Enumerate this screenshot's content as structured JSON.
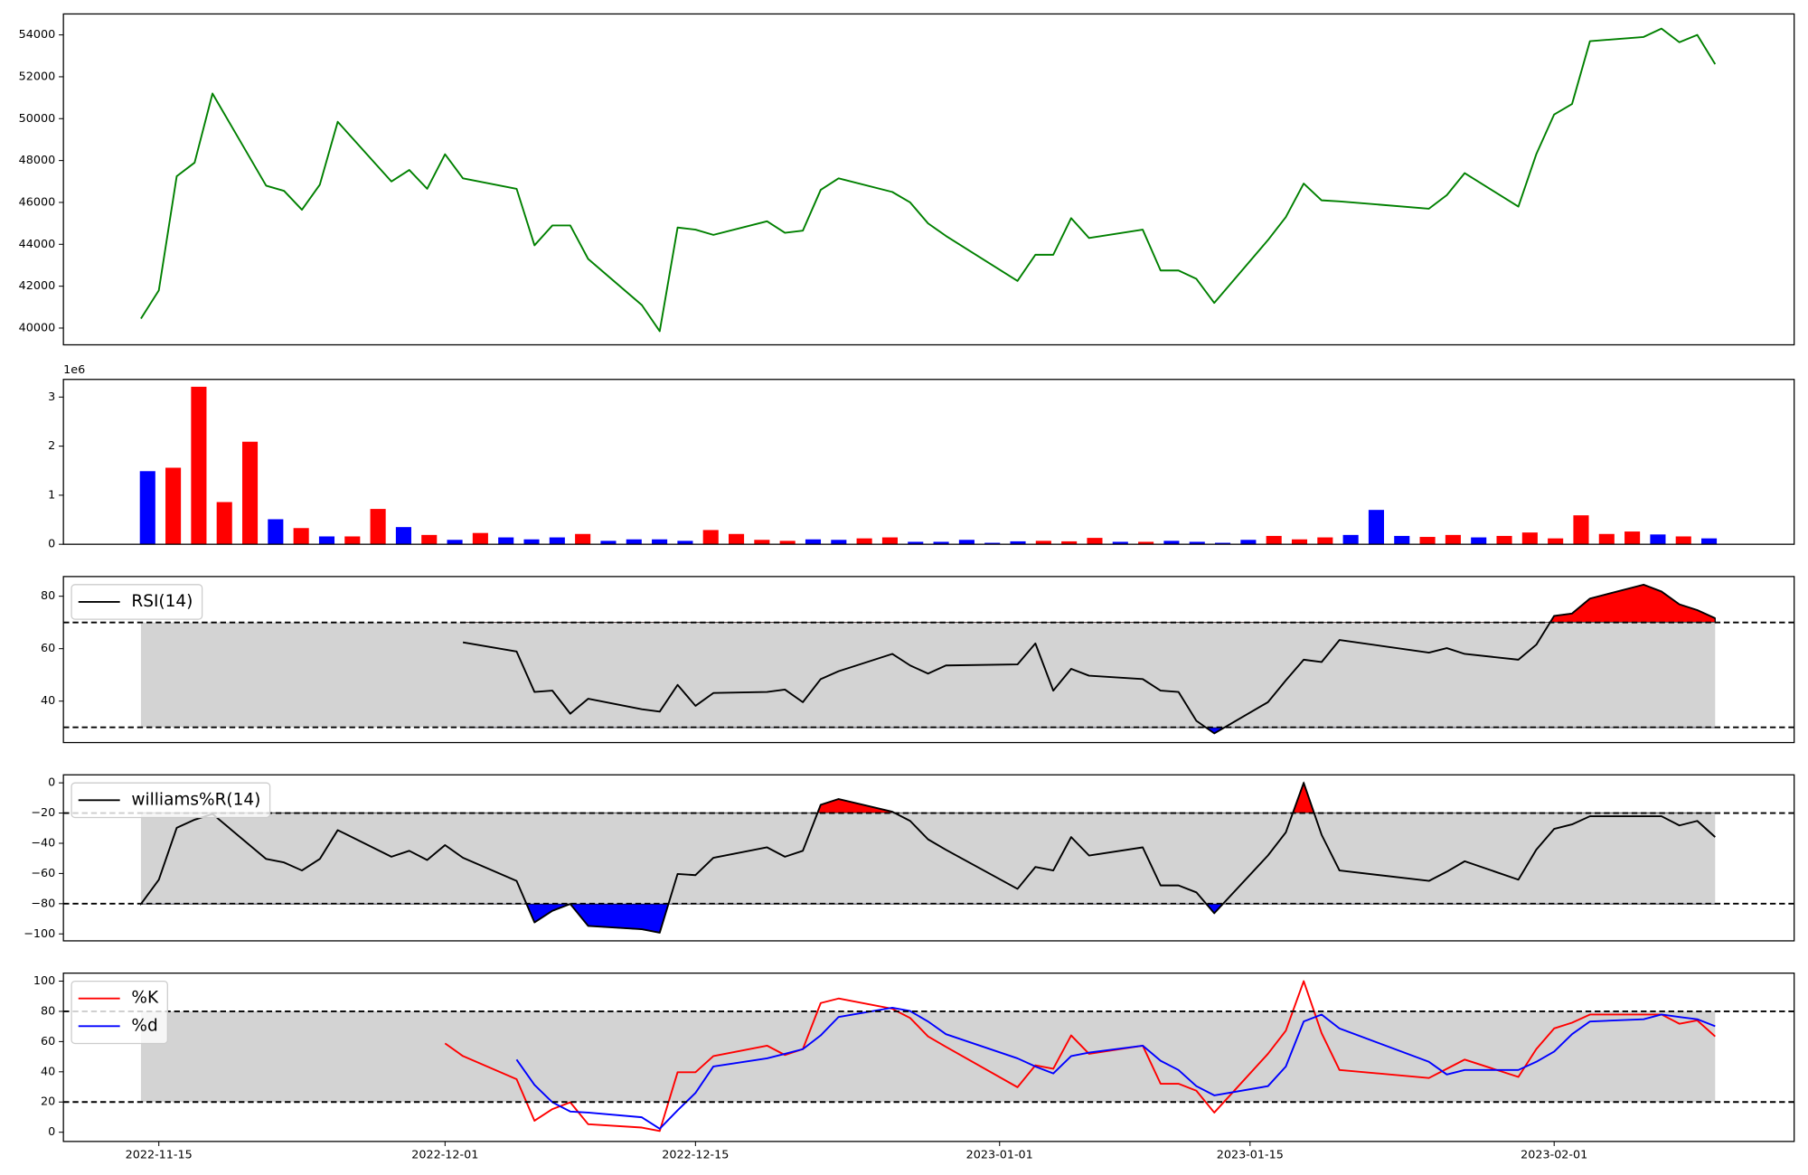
{
  "chart_data": [
    {
      "type": "line",
      "x": [
        "2022-11-14",
        "2022-11-15",
        "2022-11-16",
        "2022-11-17",
        "2022-11-18",
        "2022-11-21",
        "2022-11-22",
        "2022-11-23",
        "2022-11-24",
        "2022-11-25",
        "2022-11-28",
        "2022-11-29",
        "2022-11-30",
        "2022-12-01",
        "2022-12-02",
        "2022-12-05",
        "2022-12-06",
        "2022-12-07",
        "2022-12-08",
        "2022-12-09",
        "2022-12-12",
        "2022-12-13",
        "2022-12-14",
        "2022-12-15",
        "2022-12-16",
        "2022-12-19",
        "2022-12-20",
        "2022-12-21",
        "2022-12-22",
        "2022-12-23",
        "2022-12-26",
        "2022-12-27",
        "2022-12-28",
        "2022-12-29",
        "2023-01-02",
        "2023-01-03",
        "2023-01-04",
        "2023-01-05",
        "2023-01-06",
        "2023-01-09",
        "2023-01-10",
        "2023-01-11",
        "2023-01-12",
        "2023-01-13",
        "2023-01-16",
        "2023-01-17",
        "2023-01-18",
        "2023-01-19",
        "2023-01-20",
        "2023-01-25",
        "2023-01-26",
        "2023-01-27",
        "2023-01-30",
        "2023-01-31",
        "2023-02-01",
        "2023-02-02",
        "2023-02-03",
        "2023-02-06",
        "2023-02-07",
        "2023-02-08",
        "2023-02-09",
        "2023-02-10"
      ],
      "xlim": [
        "2022-11-09T16:00",
        "2023-02-14T10:00"
      ],
      "series": [
        {
          "color": "green",
          "values": [
            40450,
            41800,
            47250,
            47900,
            51200,
            46800,
            46550,
            45650,
            46850,
            49850,
            47000,
            47550,
            46650,
            48300,
            47150,
            46650,
            43950,
            44900,
            44900,
            43300,
            41100,
            39850,
            44800,
            44700,
            44450,
            45100,
            44550,
            44650,
            46600,
            47150,
            46500,
            46000,
            45000,
            44400,
            42250,
            43500,
            43500,
            45250,
            44300,
            44700,
            42750,
            42750,
            42350,
            41200,
            44200,
            45300,
            46900,
            46100,
            46050,
            45700,
            46350,
            47400,
            45800,
            48300,
            50200,
            50700,
            53700,
            53900,
            54300,
            53650,
            54000,
            52600
          ]
        }
      ],
      "ylim": [
        39200,
        55000
      ],
      "yticks": [
        40000,
        42000,
        44000,
        46000,
        48000,
        50000,
        52000,
        54000
      ]
    },
    {
      "type": "bar",
      "offset_label": "1e6",
      "values": [
        1490000,
        1560000,
        3210000,
        860000,
        2090000,
        510000,
        330000,
        160000,
        160000,
        720000,
        350000,
        190000,
        90000,
        230000,
        140000,
        100000,
        140000,
        210000,
        70000,
        100000,
        100000,
        70000,
        290000,
        210000,
        90000,
        70000,
        100000,
        90000,
        120000,
        140000,
        50000,
        50000,
        90000,
        30000,
        60000,
        70000,
        60000,
        130000,
        50000,
        50000,
        70000,
        50000,
        30000,
        90000,
        170000,
        100000,
        140000,
        190000,
        700000,
        170000,
        150000,
        190000,
        140000,
        170000,
        240000,
        120000,
        590000,
        210000,
        260000,
        200000,
        160000,
        120000
      ],
      "colors": [
        "blue",
        "red",
        "red",
        "red",
        "red",
        "blue",
        "red",
        "blue",
        "red",
        "red",
        "blue",
        "red",
        "blue",
        "red",
        "blue",
        "blue",
        "blue",
        "red",
        "blue",
        "blue",
        "blue",
        "blue",
        "red",
        "red",
        "red",
        "red",
        "blue",
        "blue",
        "red",
        "red",
        "blue",
        "blue",
        "blue",
        "blue",
        "blue",
        "red",
        "red",
        "red",
        "blue",
        "red",
        "blue",
        "blue",
        "blue",
        "blue",
        "red",
        "red",
        "red",
        "blue",
        "blue",
        "blue",
        "red",
        "red",
        "blue",
        "red",
        "red",
        "red",
        "red",
        "red",
        "red",
        "blue",
        "red",
        "blue"
      ],
      "ylim": [
        0,
        3360000
      ],
      "yticks": [
        0,
        {
          "value": 1000000,
          "label": "1"
        },
        {
          "value": 2000000,
          "label": "2"
        },
        {
          "value": 3000000,
          "label": "3"
        }
      ]
    },
    {
      "type": "line",
      "x": [
        "2022-11-14",
        "2022-11-15",
        "2022-11-16",
        "2022-11-17",
        "2022-11-18",
        "2022-11-21",
        "2022-11-22",
        "2022-11-23",
        "2022-11-24",
        "2022-11-25",
        "2022-11-28",
        "2022-11-29",
        "2022-11-30",
        "2022-12-01",
        "2022-12-02",
        "2022-12-05",
        "2022-12-06",
        "2022-12-07",
        "2022-12-08",
        "2022-12-09",
        "2022-12-12",
        "2022-12-13",
        "2022-12-14",
        "2022-12-15",
        "2022-12-16",
        "2022-12-19",
        "2022-12-20",
        "2022-12-21",
        "2022-12-22",
        "2022-12-23",
        "2022-12-26",
        "2022-12-27",
        "2022-12-28",
        "2022-12-29",
        "2023-01-02",
        "2023-01-03",
        "2023-01-04",
        "2023-01-05",
        "2023-01-06",
        "2023-01-09",
        "2023-01-10",
        "2023-01-11",
        "2023-01-12",
        "2023-01-13",
        "2023-01-16",
        "2023-01-17",
        "2023-01-18",
        "2023-01-19",
        "2023-01-20",
        "2023-01-25",
        "2023-01-26",
        "2023-01-27",
        "2023-01-30",
        "2023-01-31",
        "2023-02-01",
        "2023-02-02",
        "2023-02-03",
        "2023-02-06",
        "2023-02-07",
        "2023-02-08",
        "2023-02-09",
        "2023-02-10"
      ],
      "xlim": [
        "2022-11-09T16:00",
        "2023-02-14T10:00"
      ],
      "series": [
        {
          "name": "RSI(14)",
          "color": "black",
          "values": [
            null,
            null,
            null,
            null,
            null,
            null,
            null,
            null,
            null,
            null,
            null,
            null,
            null,
            null,
            62.4,
            58.9,
            43.5,
            44.0,
            35.2,
            40.9,
            36.9,
            36.0,
            46.2,
            38.2,
            43.1,
            43.5,
            44.4,
            39.6,
            48.4,
            51.4,
            58.0,
            53.6,
            50.5,
            53.6,
            54.0,
            62.0,
            44.0,
            52.3,
            49.7,
            48.4,
            44.0,
            43.5,
            32.5,
            27.7,
            39.6,
            47.9,
            55.8,
            54.9,
            63.3,
            58.5,
            60.2,
            58.0,
            55.8,
            61.5,
            72.5,
            73.4,
            79.1,
            84.4,
            81.8,
            76.9,
            74.7,
            71.6
          ]
        }
      ],
      "thresholds": [
        70,
        30
      ],
      "band_color": "lightgray",
      "fill_colors": [
        "red",
        "blue"
      ],
      "legend": "upper left",
      "ylim": [
        24.2,
        87.5
      ],
      "yticks": [
        40,
        60,
        80
      ]
    },
    {
      "type": "line",
      "x": [
        "2022-11-14",
        "2022-11-15",
        "2022-11-16",
        "2022-11-17",
        "2022-11-18",
        "2022-11-21",
        "2022-11-22",
        "2022-11-23",
        "2022-11-24",
        "2022-11-25",
        "2022-11-28",
        "2022-11-29",
        "2022-11-30",
        "2022-12-01",
        "2022-12-02",
        "2022-12-05",
        "2022-12-06",
        "2022-12-07",
        "2022-12-08",
        "2022-12-09",
        "2022-12-12",
        "2022-12-13",
        "2022-12-14",
        "2022-12-15",
        "2022-12-16",
        "2022-12-19",
        "2022-12-20",
        "2022-12-21",
        "2022-12-22",
        "2022-12-23",
        "2022-12-26",
        "2022-12-27",
        "2022-12-28",
        "2022-12-29",
        "2023-01-02",
        "2023-01-03",
        "2023-01-04",
        "2023-01-05",
        "2023-01-06",
        "2023-01-09",
        "2023-01-10",
        "2023-01-11",
        "2023-01-12",
        "2023-01-13",
        "2023-01-16",
        "2023-01-17",
        "2023-01-18",
        "2023-01-19",
        "2023-01-20",
        "2023-01-25",
        "2023-01-26",
        "2023-01-27",
        "2023-01-30",
        "2023-01-31",
        "2023-02-01",
        "2023-02-02",
        "2023-02-03",
        "2023-02-06",
        "2023-02-07",
        "2023-02-08",
        "2023-02-09",
        "2023-02-10"
      ],
      "xlim": [
        "2022-11-09T16:00",
        "2023-02-14T10:00"
      ],
      "series": [
        {
          "name": "williams%R(14)",
          "color": "black",
          "values": [
            -80.2,
            -64.1,
            -29.8,
            -24.4,
            -20.6,
            -50.4,
            -52.7,
            -58.0,
            -50.4,
            -31.3,
            -48.9,
            -45.0,
            -51.1,
            -41.2,
            -49.6,
            -64.9,
            -92.4,
            -84.7,
            -80.2,
            -94.7,
            -96.9,
            -99.2,
            -60.3,
            -61.1,
            -49.6,
            -42.7,
            -48.9,
            -45.0,
            -14.5,
            -10.7,
            -19.1,
            -25.2,
            -37.4,
            -44.3,
            -70.2,
            -55.7,
            -58.0,
            -35.9,
            -48.1,
            -42.7,
            -67.9,
            -67.9,
            -72.5,
            -86.3,
            -48.1,
            -32.8,
            0,
            -34.4,
            -58.0,
            -64.9,
            -58.8,
            -51.9,
            -64.1,
            -44.3,
            -30.5,
            -27.5,
            -22.1,
            -22.1,
            -22.1,
            -28.2,
            -25.2,
            -35.9
          ]
        }
      ],
      "thresholds": [
        -20,
        -80
      ],
      "band_color": "lightgray",
      "fill_colors": [
        "red",
        "blue"
      ],
      "legend": "upper left",
      "ylim": [
        -104.6,
        5.3
      ],
      "yticks": [
        {
          "value": -100,
          "label": "−100"
        },
        {
          "value": -80,
          "label": "−80"
        },
        {
          "value": -60,
          "label": "−60"
        },
        {
          "value": -40,
          "label": "−40"
        },
        {
          "value": -20,
          "label": "−20"
        },
        0
      ]
    },
    {
      "type": "line",
      "x": [
        "2022-11-14",
        "2022-11-15",
        "2022-11-16",
        "2022-11-17",
        "2022-11-18",
        "2022-11-21",
        "2022-11-22",
        "2022-11-23",
        "2022-11-24",
        "2022-11-25",
        "2022-11-28",
        "2022-11-29",
        "2022-11-30",
        "2022-12-01",
        "2022-12-02",
        "2022-12-05",
        "2022-12-06",
        "2022-12-07",
        "2022-12-08",
        "2022-12-09",
        "2022-12-12",
        "2022-12-13",
        "2022-12-14",
        "2022-12-15",
        "2022-12-16",
        "2022-12-19",
        "2022-12-20",
        "2022-12-21",
        "2022-12-22",
        "2022-12-23",
        "2022-12-26",
        "2022-12-27",
        "2022-12-28",
        "2022-12-29",
        "2023-01-02",
        "2023-01-03",
        "2023-01-04",
        "2023-01-05",
        "2023-01-06",
        "2023-01-09",
        "2023-01-10",
        "2023-01-11",
        "2023-01-12",
        "2023-01-13",
        "2023-01-16",
        "2023-01-17",
        "2023-01-18",
        "2023-01-19",
        "2023-01-20",
        "2023-01-25",
        "2023-01-26",
        "2023-01-27",
        "2023-01-30",
        "2023-01-31",
        "2023-02-01",
        "2023-02-02",
        "2023-02-03",
        "2023-02-06",
        "2023-02-07",
        "2023-02-08",
        "2023-02-09",
        "2023-02-10"
      ],
      "xlim": [
        "2022-11-09T16:00",
        "2023-02-14T10:00"
      ],
      "xticks": [
        "2022-11-15",
        "2022-12-01",
        "2022-12-15",
        "2023-01-01",
        "2023-01-15",
        "2023-02-01"
      ],
      "series": [
        {
          "name": "%K",
          "color": "red",
          "values": [
            null,
            null,
            null,
            null,
            null,
            null,
            null,
            null,
            null,
            null,
            null,
            null,
            null,
            58.8,
            50.4,
            35.1,
            7.6,
            15.3,
            19.8,
            5.3,
            3.1,
            0.8,
            39.7,
            39.7,
            50.4,
            57.3,
            51.1,
            55.0,
            85.5,
            88.5,
            81.7,
            75.6,
            63.4,
            56.5,
            29.8,
            44.3,
            42.0,
            64.1,
            51.9,
            57.3,
            32.1,
            32.1,
            27.5,
            13.0,
            51.9,
            67.2,
            100,
            65.6,
            41.2,
            35.9,
            42.0,
            48.1,
            36.6,
            55.0,
            68.7,
            72.5,
            77.9,
            77.9,
            77.9,
            71.8,
            74.0,
            63.4
          ]
        },
        {
          "name": "%d",
          "color": "blue",
          "values": [
            null,
            null,
            null,
            null,
            null,
            null,
            null,
            null,
            null,
            null,
            null,
            null,
            null,
            null,
            null,
            48.1,
            31.3,
            19.8,
            13.7,
            13.0,
            9.9,
            2.3,
            14.5,
            26.0,
            43.5,
            48.9,
            51.9,
            55.0,
            64.1,
            76.3,
            82.4,
            80.2,
            73.3,
            64.9,
            48.9,
            43.5,
            38.9,
            50.4,
            52.7,
            57.3,
            47.3,
            41.2,
            30.5,
            24.4,
            30.5,
            43.5,
            73.3,
            77.9,
            68.7,
            46.6,
            38.2,
            41.2,
            41.2,
            46.6,
            53.4,
            64.9,
            73.3,
            74.8,
            77.9,
            76.3,
            74.8,
            70.2
          ]
        }
      ],
      "thresholds": [
        80,
        20
      ],
      "band_color": "lightgray",
      "legend": "upper left",
      "ylim": [
        -6.1,
        105.3
      ],
      "yticks": [
        0,
        20,
        40,
        60,
        80,
        100
      ]
    }
  ]
}
